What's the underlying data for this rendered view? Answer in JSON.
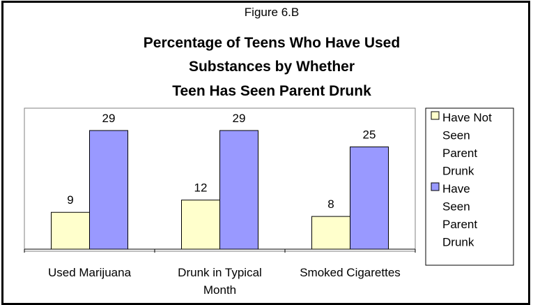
{
  "chart_data": {
    "type": "bar",
    "figure_label": "Figure 6.B",
    "title_lines": [
      "Percentage of Teens Who Have Used",
      "Substances by Whether",
      "Teen Has Seen Parent Drunk"
    ],
    "categories": [
      [
        "Used Marijuana"
      ],
      [
        "Drunk in Typical",
        "Month"
      ],
      [
        "Smoked Cigarettes"
      ]
    ],
    "series": [
      {
        "name_lines": [
          "Have Not",
          "Seen",
          "Parent",
          "Drunk"
        ],
        "values": [
          9,
          12,
          8
        ],
        "color": "#FFFFCC"
      },
      {
        "name_lines": [
          "Have",
          "Seen",
          "Parent",
          "Drunk"
        ],
        "values": [
          29,
          29,
          25
        ],
        "color": "#9999FF"
      }
    ],
    "ylim": [
      0,
      32
    ],
    "grid": false,
    "legend_position": "right",
    "data_labels": true
  }
}
